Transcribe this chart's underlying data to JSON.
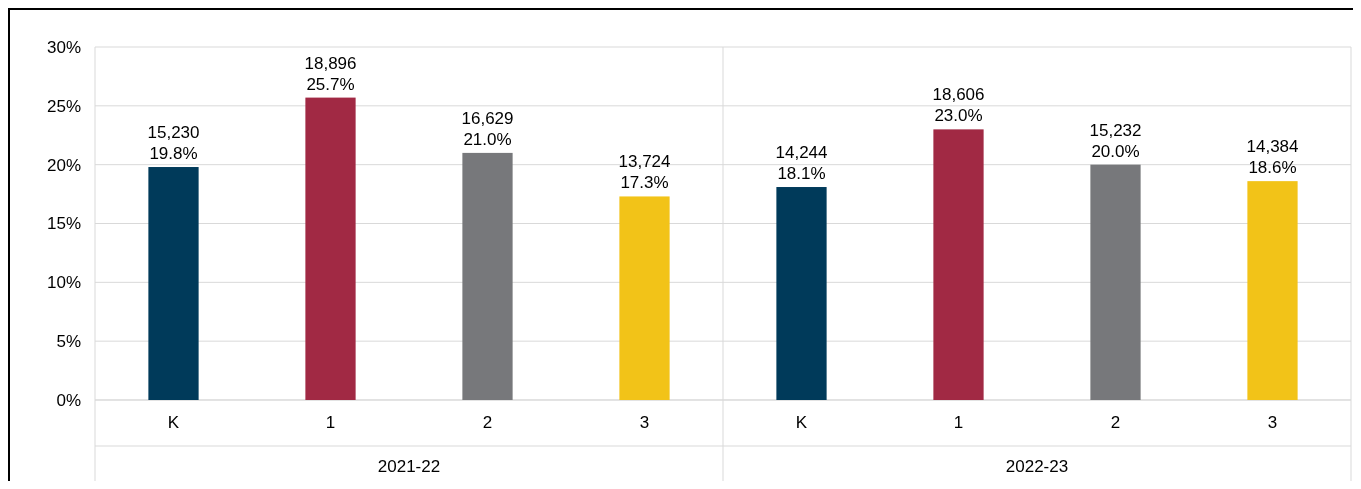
{
  "chart_data": {
    "type": "bar",
    "categories": [
      "K",
      "1",
      "2",
      "3",
      "K",
      "1",
      "2",
      "3"
    ],
    "values": [
      19.8,
      25.7,
      21.0,
      17.3,
      18.1,
      23.0,
      20.0,
      18.6
    ],
    "colors": [
      "#003a5a",
      "#a12944",
      "#77787b",
      "#f2c318",
      "#003a5a",
      "#a12944",
      "#77787b",
      "#f2c318"
    ],
    "value_labels": [
      "15,230\n19.8%",
      "18,896\n25.7%",
      "16,629\n21.0%",
      "13,724\n17.3%",
      "14,244\n18.1%",
      "18,606\n23.0%",
      "15,232\n20.0%",
      "14,384\n18.6%"
    ],
    "annotations": [
      "2021-22",
      "2022-23"
    ],
    "ylim": [
      0,
      30
    ],
    "yticks": [
      {
        "value": 0,
        "label": "0%"
      },
      {
        "value": 5,
        "label": "5%"
      },
      {
        "value": 10,
        "label": "10%"
      },
      {
        "value": 15,
        "label": "15%"
      },
      {
        "value": 20,
        "label": "20%"
      },
      {
        "value": 25,
        "label": "25%"
      },
      {
        "value": 30,
        "label": "30%"
      }
    ],
    "grid": "y"
  }
}
